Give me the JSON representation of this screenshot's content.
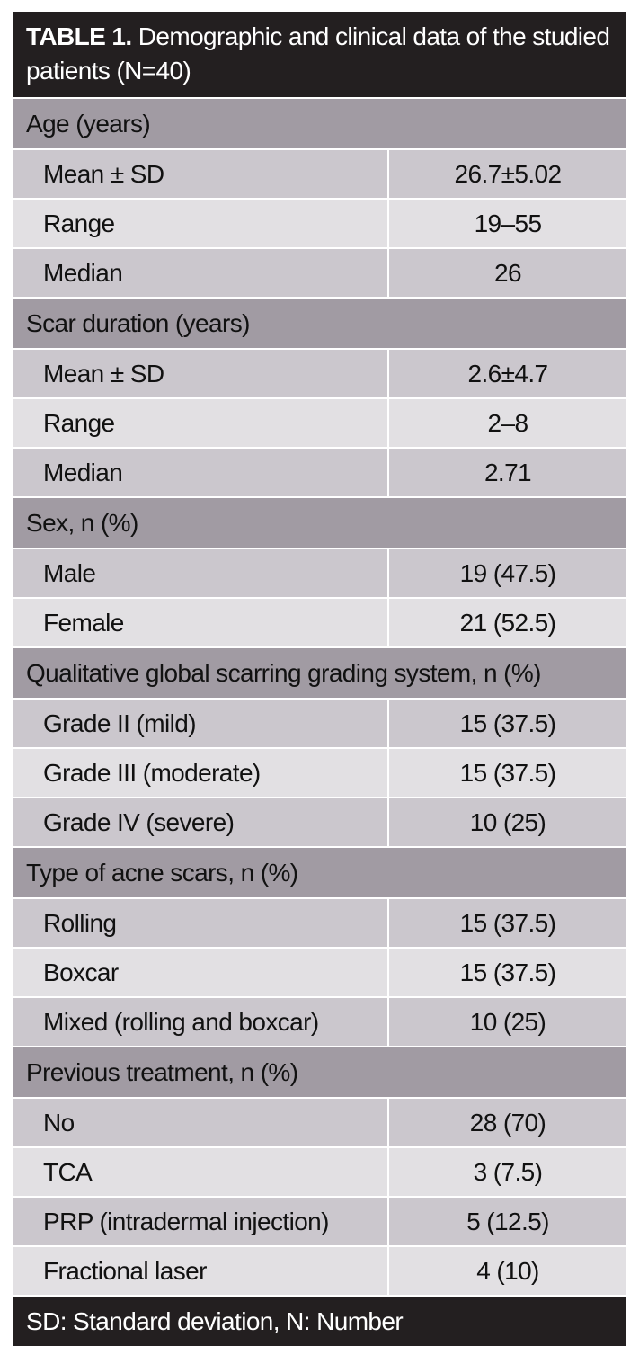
{
  "title": {
    "label": "TABLE 1.",
    "text": " Demographic and clinical data of the studied patients (N=40)"
  },
  "sections": [
    {
      "header": "Age (years)",
      "rows": [
        {
          "label": "Mean ± SD",
          "value": "26.7±5.02"
        },
        {
          "label": "Range",
          "value": "19–55"
        },
        {
          "label": "Median",
          "value": "26"
        }
      ]
    },
    {
      "header": "Scar duration (years)",
      "rows": [
        {
          "label": "Mean ± SD",
          "value": "2.6±4.7"
        },
        {
          "label": "Range",
          "value": "2–8"
        },
        {
          "label": "Median",
          "value": "2.71"
        }
      ]
    },
    {
      "header": "Sex, n (%)",
      "rows": [
        {
          "label": "Male",
          "value": "19 (47.5)"
        },
        {
          "label": "Female",
          "value": "21 (52.5)"
        }
      ]
    },
    {
      "header": "Qualitative global scarring grading system, n (%)",
      "rows": [
        {
          "label": "Grade II (mild)",
          "value": "15 (37.5)"
        },
        {
          "label": "Grade III (moderate)",
          "value": "15 (37.5)"
        },
        {
          "label": "Grade IV  (severe)",
          "value": "10 (25)"
        }
      ]
    },
    {
      "header": "Type of acne scars, n (%)",
      "rows": [
        {
          "label": "Rolling",
          "value": "15 (37.5)"
        },
        {
          "label": "Boxcar",
          "value": "15 (37.5)"
        },
        {
          "label": "Mixed (rolling and boxcar)",
          "value": "10 (25)"
        }
      ]
    },
    {
      "header": "Previous treatment, n (%)",
      "rows": [
        {
          "label": "No",
          "value": "28 (70)"
        },
        {
          "label": "TCA",
          "value": "3 (7.5)"
        },
        {
          "label": "PRP (intradermal injection)",
          "value": "5 (12.5)"
        },
        {
          "label": "Fractional laser",
          "value": "4 (10)"
        }
      ]
    }
  ],
  "footnote": "SD: Standard deviation, N: Number",
  "colors": {
    "title_bg": "#231f20",
    "section_bg": "#a19ba3",
    "row_shade": "#cbc7cd",
    "row_light": "#e2e0e3"
  }
}
